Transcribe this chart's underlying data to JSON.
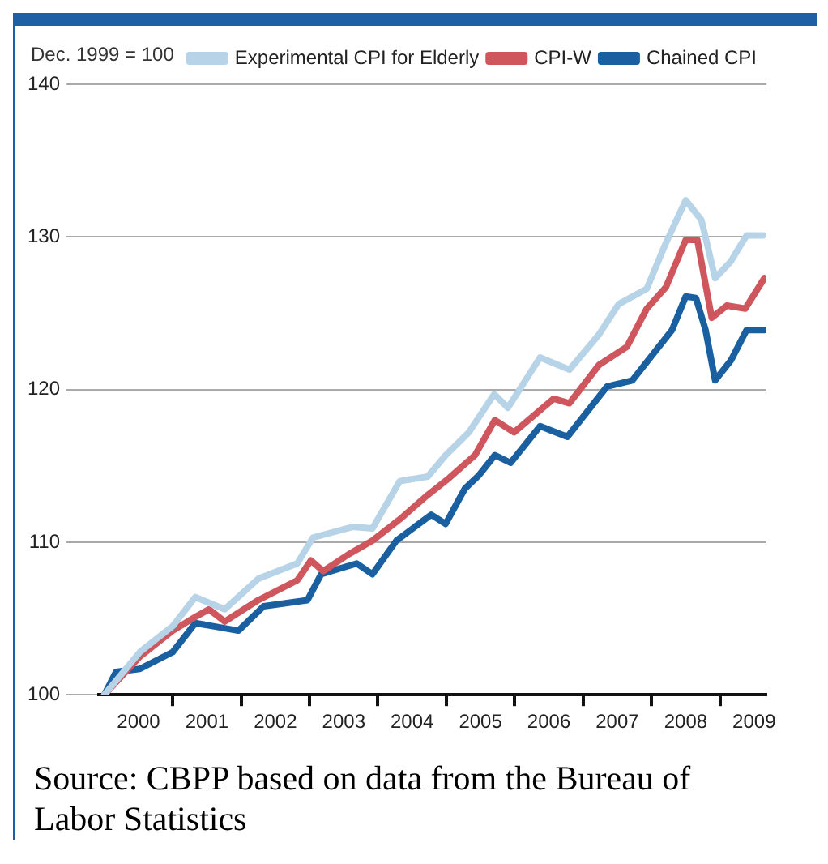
{
  "chart_data": {
    "type": "line",
    "ylabel": "Dec. 1999 = 100",
    "xlim": [
      1999.92,
      2009.68
    ],
    "ylim": [
      100,
      140
    ],
    "yticks": [
      100,
      110,
      120,
      130,
      140
    ],
    "xticks": [
      {
        "value": 2000.5,
        "label": "2000"
      },
      {
        "value": 2001,
        "label": null
      },
      {
        "value": 2001.5,
        "label": "2001"
      },
      {
        "value": 2002,
        "label": null
      },
      {
        "value": 2002.5,
        "label": "2002"
      },
      {
        "value": 2003,
        "label": null
      },
      {
        "value": 2003.5,
        "label": "2003"
      },
      {
        "value": 2004,
        "label": null
      },
      {
        "value": 2004.5,
        "label": "2004"
      },
      {
        "value": 2005,
        "label": null
      },
      {
        "value": 2005.5,
        "label": "2005"
      },
      {
        "value": 2006,
        "label": null
      },
      {
        "value": 2006.5,
        "label": "2006"
      },
      {
        "value": 2007,
        "label": null
      },
      {
        "value": 2007.5,
        "label": "2007"
      },
      {
        "value": 2008,
        "label": null
      },
      {
        "value": 2008.5,
        "label": "2008"
      },
      {
        "value": 2009,
        "label": null
      },
      {
        "value": 2009.5,
        "label": "2009"
      }
    ],
    "grid": "y",
    "legend": "top right",
    "marker": "none",
    "line_style": "solid",
    "series": [
      {
        "name": "Experimental CPI for Elderly",
        "color": "#b7d3e8",
        "x": [
          2000,
          2000.52,
          2001,
          2001.33,
          2001.76,
          2002.25,
          2002.82,
          2003.05,
          2003.63,
          2003.92,
          2004.32,
          2004.73,
          2004.99,
          2005.33,
          2005.7,
          2005.9,
          2006.37,
          2006.8,
          2007.23,
          2007.52,
          2007.93,
          2008.21,
          2008.5,
          2008.73,
          2008.93,
          2009.16,
          2009.39,
          2009.63
        ],
        "values": [
          100,
          102.8,
          104.5,
          106.4,
          105.6,
          107.6,
          108.6,
          110.3,
          111,
          110.9,
          114,
          114.3,
          115.7,
          117.2,
          119.7,
          118.8,
          122.1,
          121.3,
          123.6,
          125.6,
          126.6,
          129.6,
          132.4,
          131.1,
          127.3,
          128.4,
          130.1,
          130.1
        ]
      },
      {
        "name": "CPI-W",
        "color": "#d0565e",
        "x": [
          2000,
          2000.52,
          2001,
          2001.33,
          2001.53,
          2001.76,
          2002.25,
          2002.82,
          2003.02,
          2003.2,
          2003.57,
          2003.92,
          2004.32,
          2004.73,
          2005.04,
          2005.42,
          2005.71,
          2005.99,
          2006.57,
          2006.8,
          2007.23,
          2007.64,
          2007.93,
          2008.21,
          2008.5,
          2008.67,
          2008.88,
          2009.1,
          2009.37,
          2009.65
        ],
        "values": [
          100,
          102.5,
          104.2,
          105.1,
          105.6,
          104.8,
          106.2,
          107.5,
          108.8,
          108.1,
          109.2,
          110.1,
          111.5,
          113.1,
          114.2,
          115.7,
          118,
          117.2,
          119.4,
          119.1,
          121.6,
          122.8,
          125.3,
          126.7,
          129.8,
          129.8,
          124.7,
          125.5,
          125.3,
          127.3
        ]
      },
      {
        "name": "Chained CPI",
        "color": "#1a5fa0",
        "x": [
          2000,
          2000.17,
          2000.52,
          2001,
          2001.33,
          2001.96,
          2002.33,
          2002.97,
          2003.17,
          2003.69,
          2003.92,
          2004.27,
          2004.78,
          2004.99,
          2005.27,
          2005.48,
          2005.71,
          2005.94,
          2006.37,
          2006.77,
          2007.35,
          2007.72,
          2008,
          2008.3,
          2008.5,
          2008.65,
          2008.79,
          2008.93,
          2009.16,
          2009.39,
          2009.65
        ],
        "values": [
          100,
          101.5,
          101.7,
          102.8,
          104.7,
          104.2,
          105.8,
          106.2,
          107.9,
          108.6,
          107.9,
          110.1,
          111.8,
          111.2,
          113.5,
          114.4,
          115.7,
          115.2,
          117.6,
          116.9,
          120.2,
          120.6,
          122.2,
          123.9,
          126.1,
          126,
          123.9,
          120.6,
          121.9,
          123.9,
          123.9
        ]
      }
    ],
    "annotations": [
      "Source: CBPP based on data from the Bureau of Labor Statistics"
    ]
  }
}
